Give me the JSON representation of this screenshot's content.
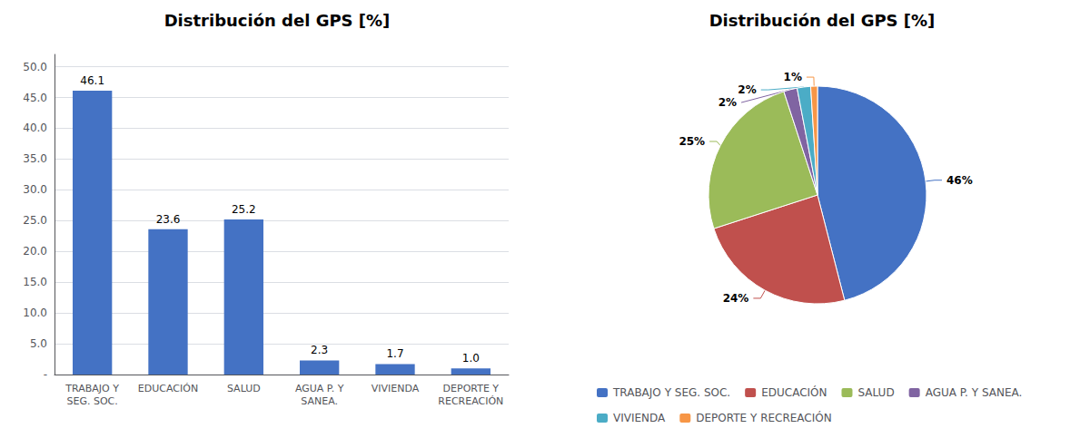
{
  "chart_data": [
    {
      "type": "bar",
      "title": "Distribución del GPS [%]",
      "categories": [
        "TRABAJO Y\nSEG. SOC.",
        "EDUCACIÓN",
        "SALUD",
        "AGUA P. Y\nSANEA.",
        "VIVIENDA",
        "DEPORTE Y\nRECREACIÓN"
      ],
      "values": [
        46.1,
        23.6,
        25.2,
        2.3,
        1.7,
        1.0
      ],
      "value_labels": [
        "46.1",
        "23.6",
        "25.2",
        "2.3",
        "1.7",
        "1.0"
      ],
      "data_labels": true,
      "color": "#4472C4",
      "ylim": [
        0,
        52
      ],
      "yticks": [
        {
          "value": 0,
          "label": "-"
        },
        {
          "value": 5,
          "label": "5.0"
        },
        {
          "value": 10,
          "label": "10.0"
        },
        {
          "value": 15,
          "label": "15.0"
        },
        {
          "value": 20,
          "label": "20.0"
        },
        {
          "value": 25,
          "label": "25.0"
        },
        {
          "value": 30,
          "label": "30.0"
        },
        {
          "value": 35,
          "label": "35.0"
        },
        {
          "value": 40,
          "label": "40.0"
        },
        {
          "value": 45,
          "label": "45.0"
        },
        {
          "value": 50,
          "label": "50.0"
        }
      ],
      "grid": true
    },
    {
      "type": "pie",
      "title": "Distribución del GPS [%]",
      "categories": [
        "TRABAJO Y SEG. SOC.",
        "EDUCACIÓN",
        "SALUD",
        "AGUA P. Y SANEA.",
        "VIVIENDA",
        "DEPORTE Y RECREACIÓN"
      ],
      "values": [
        46,
        24,
        25,
        2,
        2,
        1
      ],
      "value_labels": [
        "46%",
        "24%",
        "25%",
        "2%",
        "2%",
        "1%"
      ],
      "data_labels": true,
      "colors": [
        "#4472C4",
        "#C0504D",
        "#9BBB59",
        "#8064A2",
        "#4BACC6",
        "#F79646"
      ],
      "legend": "bottom"
    }
  ]
}
